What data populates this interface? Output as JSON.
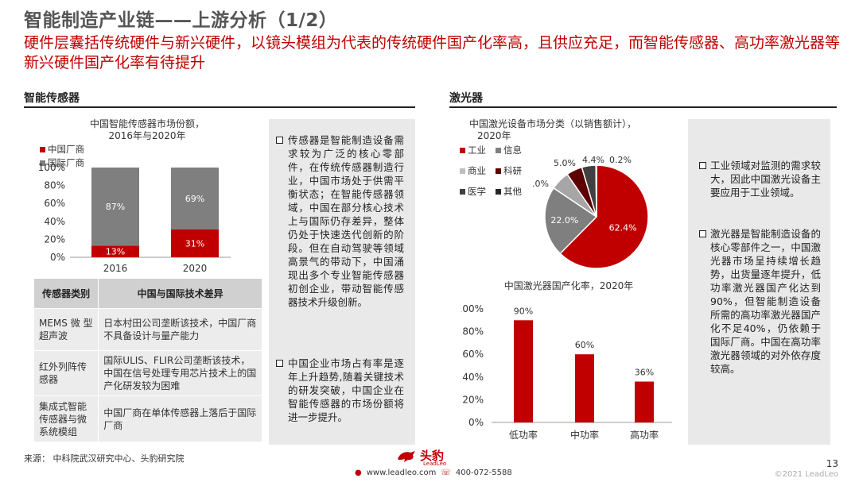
{
  "header": {
    "title": "智能制造产业链——上游分析（1/2）",
    "subtitle": "硬件层囊括传统硬件与新兴硬件，以镜头模组为代表的传统硬件国产化率高，且供应充足，而智能传感器、高功率激光器等新兴硬件国产化率有待提升"
  },
  "left_section": {
    "title": "智能传感器",
    "chart_title_line1": "中国智能传感器市场份额，",
    "chart_title_line2": "2016年与2020年",
    "legend": [
      "中国厂商",
      "国际厂商"
    ]
  },
  "right_section": {
    "title": "激光器",
    "pie_title_line1": "中国激光设备市场分类（以销售额计），",
    "pie_title_line2": "2020年",
    "pie_legend": [
      "工业",
      "信息",
      "商业",
      "科研",
      "医学",
      "其他"
    ],
    "bar_title": "中国激光器国产化率，2020年"
  },
  "table": {
    "headers": [
      "传感器类别",
      "中国与国际技术差异"
    ],
    "rows": [
      [
        "MEMS 微 型超声波",
        "日本村田公司垄断该技术，中国厂商不具备设计与量产能力"
      ],
      [
        "红外列阵传感器",
        "国际ULIS、FLIR公司垄断该技术，中国在信号处理专用芯片技术上的国产化研发较为困难"
      ],
      [
        "集成式智能传感器与微系统模组",
        "中国厂商在单体传感器上落后于国际厂商"
      ]
    ]
  },
  "notes_left": [
    "传感器是智能制造设备需求较为广泛的核心零部件，在传统传感器制造行业，中国市场处于供需平衡状态；在智能传感器领域，中国在部分核心技术上与国际仍存差异，整体仍处于快速迭代创新的阶段。但在自动驾驶等领域高景气的带动下，中国涌现出多个专业智能传感器初创企业，带动智能传感器技术升级创新。",
    "中国企业市场占有率是逐年上升趋势,随着关键技术的研发突破，中国企业在智能传感器的市场份额将进一步提升。"
  ],
  "notes_right": [
    "工业领域对监测的需求较大，因此中国激光设备主要应用于工业领域。",
    "激光器是智能制造设备的核心零部件之一，中国激光器市场呈持续增长趋势，出货量逐年提升，低功率激光器国产化达到90%，但智能制造设备所需的高功率激光器国产化不足40%，仍依赖于国际厂商。中国在高功率激光器领域的对外依存度较高。"
  ],
  "colors": {
    "red": "#c00000",
    "gray": "#7f7f7f",
    "lightgray": "#a6a6a6",
    "dark": "#404040",
    "dark2": "#262626"
  },
  "chart_data": [
    {
      "type": "bar",
      "stacked": true,
      "title": "中国智能传感器市场份额，2016年与2020年",
      "categories": [
        "2016",
        "2020"
      ],
      "series": [
        {
          "name": "中国厂商",
          "values": [
            13,
            31
          ],
          "labels": [
            "13%",
            "31%"
          ]
        },
        {
          "name": "国际厂商",
          "values": [
            87,
            69
          ],
          "labels": [
            "87%",
            "69%"
          ]
        }
      ],
      "yticks": [
        "0%",
        "20%",
        "40%",
        "60%",
        "80%",
        "100%"
      ],
      "ylim": [
        0,
        100
      ]
    },
    {
      "type": "pie",
      "title": "中国激光设备市场分类（以销售额计），2020年",
      "slices": [
        {
          "name": "工业",
          "value": 62.4,
          "label": "62.4%"
        },
        {
          "name": "信息",
          "value": 22.0,
          "label": "22.0%"
        },
        {
          "name": "商业",
          "value": 6.0,
          "label": "6.0%"
        },
        {
          "name": "科研",
          "value": 5.0,
          "label": "5.0%"
        },
        {
          "name": "医学",
          "value": 4.4,
          "label": "4.4%"
        },
        {
          "name": "其他",
          "value": 0.2,
          "label": "0.2%"
        }
      ]
    },
    {
      "type": "bar",
      "title": "中国激光器国产化率，2020年",
      "categories": [
        "低功率",
        "中功率",
        "高功率"
      ],
      "values": [
        90,
        60,
        36
      ],
      "labels": [
        "90%",
        "60%",
        "36%"
      ],
      "yticks": [
        "0%",
        "20%",
        "40%",
        "60%",
        "80%",
        "100%"
      ],
      "ylim": [
        0,
        100
      ]
    }
  ],
  "footer": {
    "source": "来源：  中科院武汉研究中心、头豹研究院",
    "logo_text": "头豹",
    "logo_sub": "LeadLeo",
    "website": "www.leadleo.com",
    "phone": "400-072-5588",
    "page": "13",
    "copyright": "©2021 LeadLeo"
  }
}
